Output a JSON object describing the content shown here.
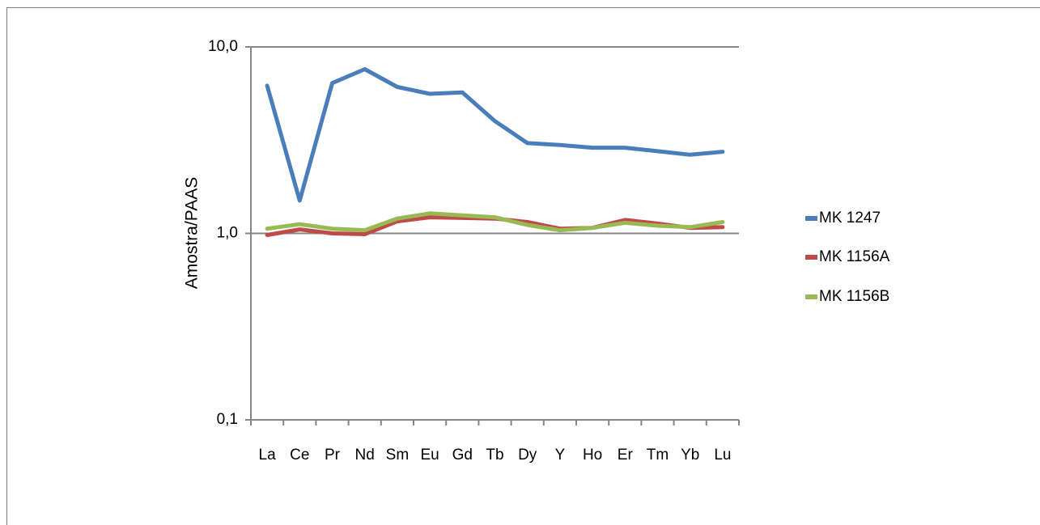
{
  "chart_data": {
    "type": "line",
    "title": "",
    "xlabel": "",
    "ylabel": "Amostra/PAAS",
    "yscale": "log",
    "ylim": [
      0.1,
      10.0
    ],
    "ytick_labels": [
      "10,0",
      "1,0",
      "0,1"
    ],
    "ytick_values": [
      10.0,
      1.0,
      0.1
    ],
    "grid": "horizontal major gridlines",
    "legend_position": "right",
    "categories": [
      "La",
      "Ce",
      "Pr",
      "Nd",
      "Sm",
      "Eu",
      "Gd",
      "Tb",
      "Dy",
      "Y",
      "Ho",
      "Er",
      "Tm",
      "Yb",
      "Lu"
    ],
    "series": [
      {
        "name": "MK 1247",
        "color": "#4a7ebb",
        "values": [
          6.2,
          1.5,
          6.4,
          7.6,
          6.1,
          5.6,
          5.7,
          4.0,
          3.05,
          2.98,
          2.88,
          2.88,
          2.76,
          2.64,
          2.74
        ]
      },
      {
        "name": "MK 1156A",
        "color": "#be4b48",
        "values": [
          0.98,
          1.05,
          1.0,
          0.99,
          1.16,
          1.22,
          1.21,
          1.2,
          1.15,
          1.06,
          1.07,
          1.18,
          1.13,
          1.07,
          1.08
        ]
      },
      {
        "name": "MK 1156B",
        "color": "#98b954",
        "values": [
          1.06,
          1.12,
          1.06,
          1.04,
          1.2,
          1.28,
          1.25,
          1.22,
          1.11,
          1.04,
          1.07,
          1.14,
          1.1,
          1.08,
          1.15
        ]
      }
    ]
  }
}
